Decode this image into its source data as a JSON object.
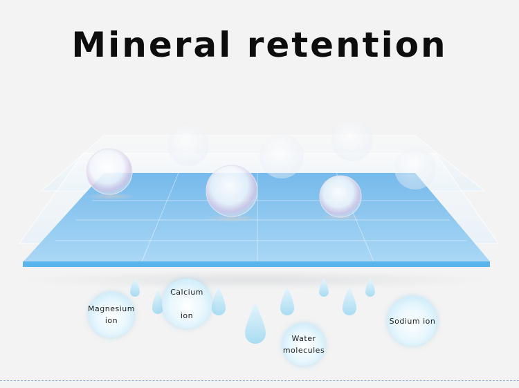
{
  "title": "Mineral retention",
  "labels": {
    "magnesium": "Magnesium\nion",
    "calcium": "Calcium\n\nion",
    "water": "Water\nmolecules",
    "sodium": "Sodium ion"
  },
  "colors": {
    "background": "#f3f3f3",
    "layer_blue": "#8cc8f0",
    "edge_blue": "#5ab4ec",
    "droplet": "#bfe6f7"
  }
}
